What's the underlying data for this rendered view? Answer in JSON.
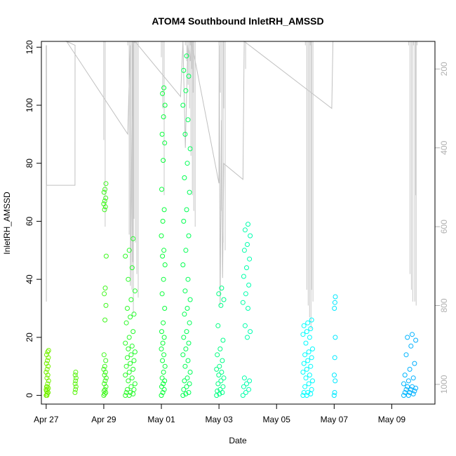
{
  "chart_data": {
    "type": "scatter",
    "title": "ATOM4 Southbound InletRH_AMSSD",
    "xlabel": "Date",
    "ylabel": "InletRH_AMSSD",
    "xlim": [
      "2018-04-26T20:00",
      "2018-05-10T12:00"
    ],
    "ylim": [
      -3,
      122
    ],
    "x_ticks": [
      {
        "date": "2018-04-27",
        "label": "Apr 27"
      },
      {
        "date": "2018-04-29",
        "label": "Apr 29"
      },
      {
        "date": "2018-05-01",
        "label": "May 01"
      },
      {
        "date": "2018-05-03",
        "label": "May 03"
      },
      {
        "date": "2018-05-05",
        "label": "May 05"
      },
      {
        "date": "2018-05-07",
        "label": "May 07"
      },
      {
        "date": "2018-05-09",
        "label": "May 09"
      }
    ],
    "y_ticks": [
      0,
      20,
      40,
      60,
      80,
      100,
      120
    ],
    "secondary_axis": {
      "side": "right",
      "reversed": true,
      "range": [
        130,
        1050
      ],
      "ticks": [
        200,
        400,
        600,
        800,
        1000
      ],
      "color": "#b0b0b0"
    },
    "marker": "open-circle",
    "color_gradient": [
      "#7cf000",
      "#00ff40",
      "#00ffff",
      "#00a0ff"
    ],
    "series": [
      {
        "start": "2018-04-27T00:00",
        "end": "2018-04-27T02:00",
        "values": [
          0,
          0.5,
          1,
          1.5,
          2,
          2.5,
          3,
          4,
          5,
          6,
          7,
          8,
          9,
          10,
          11,
          12,
          13,
          14,
          15,
          15.5,
          0,
          1,
          2,
          3
        ]
      },
      {
        "start": "2018-04-28T00:00",
        "end": "2018-04-28T01:00",
        "values": [
          1,
          2,
          3,
          4,
          5,
          6,
          7,
          8
        ]
      },
      {
        "start": "2018-04-29T00:00",
        "end": "2018-04-29T02:00",
        "values": [
          0,
          0.5,
          1,
          1.5,
          2,
          3,
          4,
          5,
          6,
          7,
          8,
          9,
          10,
          12,
          14,
          26,
          31,
          35,
          37,
          48,
          64,
          65,
          66,
          67,
          68,
          70,
          71,
          73
        ]
      },
      {
        "start": "2018-04-29T18:00",
        "end": "2018-04-30T02:00",
        "values": [
          0,
          0,
          0.5,
          1,
          1,
          2,
          2,
          3,
          4,
          5,
          6,
          7,
          8,
          9,
          10,
          11,
          12,
          13,
          14,
          15,
          16,
          17,
          18,
          20,
          22,
          25,
          27,
          28,
          30,
          33,
          36,
          40,
          44,
          48,
          50,
          54
        ]
      },
      {
        "start": "2018-05-01T00:00",
        "end": "2018-05-01T03:00",
        "values": [
          0,
          1,
          2,
          3,
          4,
          5,
          6,
          8,
          10,
          12,
          14,
          16,
          18,
          20,
          22,
          25,
          30,
          35,
          40,
          45,
          48,
          50,
          55,
          60,
          64,
          71,
          81,
          87,
          90,
          96,
          100,
          104,
          106
        ]
      },
      {
        "start": "2018-05-01T18:00",
        "end": "2018-05-02T00:00",
        "values": [
          0,
          0.5,
          1,
          2,
          3,
          4,
          5,
          6,
          8,
          10,
          12,
          14,
          16,
          18,
          20,
          22,
          25,
          28,
          30,
          33,
          36,
          40,
          45,
          50,
          55,
          60,
          64,
          70,
          75,
          80,
          85,
          90,
          95,
          100,
          105,
          110,
          112,
          117
        ]
      },
      {
        "start": "2018-05-02T22:00",
        "end": "2018-05-03T04:00",
        "values": [
          0,
          0.5,
          1,
          1.5,
          2,
          3,
          4,
          5,
          6,
          7,
          8,
          9,
          10,
          12,
          14,
          16,
          19,
          24,
          31,
          33,
          35,
          37
        ]
      },
      {
        "start": "2018-05-03T20:00",
        "end": "2018-05-04T02:00",
        "values": [
          0,
          1,
          2,
          3,
          4,
          5,
          6,
          20,
          22,
          24,
          30,
          32,
          35,
          38,
          41,
          44,
          47,
          50,
          52,
          55,
          57,
          59
        ]
      },
      {
        "start": "2018-05-05T22:00",
        "end": "2018-05-06T06:00",
        "values": [
          0,
          0,
          0.5,
          1,
          1,
          2,
          3,
          4,
          5,
          6,
          7,
          8,
          9,
          10,
          11,
          12,
          13,
          14,
          15,
          16,
          18,
          20,
          21,
          22,
          23,
          24,
          25,
          26
        ]
      },
      {
        "start": "2018-05-07T00:00",
        "end": "2018-05-07T01:00",
        "values": [
          0,
          1,
          5,
          7,
          13,
          20,
          30,
          32,
          34
        ]
      },
      {
        "start": "2018-05-09T10:00",
        "end": "2018-05-09T20:00",
        "values": [
          0,
          0,
          0.5,
          1,
          1,
          1.5,
          2,
          2,
          2.5,
          3,
          3,
          4,
          5,
          6,
          7,
          9,
          11,
          14,
          17,
          19,
          20,
          21
        ]
      }
    ]
  }
}
